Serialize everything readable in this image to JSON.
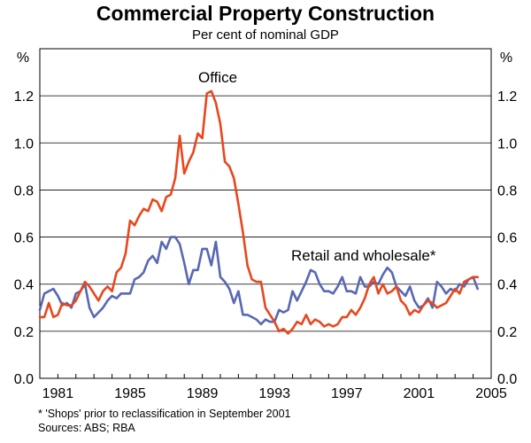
{
  "chart_data": {
    "type": "line",
    "title": "Commercial Property Construction",
    "subtitle": "Per cent of nominal GDP",
    "ylabel_left": "%",
    "ylabel_right": "%",
    "ylim": [
      0,
      1.4
    ],
    "xlim": [
      1980,
      2005
    ],
    "y_ticks": [
      0.0,
      0.2,
      0.4,
      0.6,
      0.8,
      1.0,
      1.2
    ],
    "y_tick_labels": [
      "0.0",
      "0.2",
      "0.4",
      "0.6",
      "0.8",
      "1.0",
      "1.2"
    ],
    "x_ticks": [
      1981,
      1985,
      1989,
      1993,
      1997,
      2001,
      2005
    ],
    "x_tick_labels": [
      "1981",
      "1985",
      "1989",
      "1993",
      "1997",
      "2001",
      "2005"
    ],
    "grid": "horizontal",
    "series": [
      {
        "name": "Office",
        "color": "#e8471e",
        "x": [
          1980.0,
          1980.25,
          1980.5,
          1980.75,
          1981.0,
          1981.25,
          1981.5,
          1981.75,
          1982.0,
          1982.25,
          1982.5,
          1982.75,
          1983.0,
          1983.25,
          1983.5,
          1983.75,
          1984.0,
          1984.25,
          1984.5,
          1984.75,
          1985.0,
          1985.25,
          1985.5,
          1985.75,
          1986.0,
          1986.25,
          1986.5,
          1986.75,
          1987.0,
          1987.25,
          1987.5,
          1987.75,
          1988.0,
          1988.25,
          1988.5,
          1988.75,
          1989.0,
          1989.25,
          1989.5,
          1989.75,
          1990.0,
          1990.25,
          1990.5,
          1990.75,
          1991.0,
          1991.25,
          1991.5,
          1991.75,
          1992.0,
          1992.25,
          1992.5,
          1992.75,
          1993.0,
          1993.25,
          1993.5,
          1993.75,
          1994.0,
          1994.25,
          1994.5,
          1994.75,
          1995.0,
          1995.25,
          1995.5,
          1995.75,
          1996.0,
          1996.25,
          1996.5,
          1996.75,
          1997.0,
          1997.25,
          1997.5,
          1997.75,
          1998.0,
          1998.25,
          1998.5,
          1998.75,
          1999.0,
          1999.25,
          1999.5,
          1999.75,
          2000.0,
          2000.25,
          2000.5,
          2000.75,
          2001.0,
          2001.25,
          2001.5,
          2001.75,
          2002.0,
          2002.25,
          2002.5,
          2002.75,
          2003.0,
          2003.25,
          2003.5,
          2003.75,
          2004.0,
          2004.25
        ],
        "values": [
          0.26,
          0.26,
          0.32,
          0.26,
          0.27,
          0.32,
          0.31,
          0.31,
          0.33,
          0.37,
          0.41,
          0.39,
          0.36,
          0.33,
          0.37,
          0.39,
          0.37,
          0.45,
          0.47,
          0.53,
          0.67,
          0.65,
          0.69,
          0.72,
          0.71,
          0.76,
          0.75,
          0.71,
          0.77,
          0.78,
          0.85,
          1.03,
          0.87,
          0.92,
          0.96,
          1.04,
          1.02,
          1.21,
          1.22,
          1.17,
          1.08,
          0.92,
          0.9,
          0.85,
          0.74,
          0.62,
          0.48,
          0.42,
          0.41,
          0.41,
          0.3,
          0.27,
          0.24,
          0.2,
          0.21,
          0.19,
          0.21,
          0.24,
          0.23,
          0.27,
          0.23,
          0.25,
          0.24,
          0.22,
          0.23,
          0.22,
          0.23,
          0.26,
          0.26,
          0.29,
          0.27,
          0.3,
          0.34,
          0.4,
          0.43,
          0.36,
          0.4,
          0.36,
          0.37,
          0.39,
          0.33,
          0.31,
          0.27,
          0.29,
          0.28,
          0.31,
          0.33,
          0.32,
          0.3,
          0.31,
          0.32,
          0.35,
          0.38,
          0.36,
          0.41,
          0.42,
          0.43,
          0.43
        ]
      },
      {
        "name": "Retail and wholesale*",
        "color": "#5868b4",
        "x": [
          1980.0,
          1980.25,
          1980.5,
          1980.75,
          1981.0,
          1981.25,
          1981.5,
          1981.75,
          1982.0,
          1982.25,
          1982.5,
          1982.75,
          1983.0,
          1983.25,
          1983.5,
          1983.75,
          1984.0,
          1984.25,
          1984.5,
          1984.75,
          1985.0,
          1985.25,
          1985.5,
          1985.75,
          1986.0,
          1986.25,
          1986.5,
          1986.75,
          1987.0,
          1987.25,
          1987.5,
          1987.75,
          1988.0,
          1988.25,
          1988.5,
          1988.75,
          1989.0,
          1989.25,
          1989.5,
          1989.75,
          1990.0,
          1990.25,
          1990.5,
          1990.75,
          1991.0,
          1991.25,
          1991.5,
          1991.75,
          1992.0,
          1992.25,
          1992.5,
          1992.75,
          1993.0,
          1993.25,
          1993.5,
          1993.75,
          1994.0,
          1994.25,
          1994.5,
          1994.75,
          1995.0,
          1995.25,
          1995.5,
          1995.75,
          1996.0,
          1996.25,
          1996.5,
          1996.75,
          1997.0,
          1997.25,
          1997.5,
          1997.75,
          1998.0,
          1998.25,
          1998.5,
          1998.75,
          1999.0,
          1999.25,
          1999.5,
          1999.75,
          2000.0,
          2000.25,
          2000.5,
          2000.75,
          2001.0,
          2001.25,
          2001.5,
          2001.75,
          2002.0,
          2002.25,
          2002.5,
          2002.75,
          2003.0,
          2003.25,
          2003.5,
          2003.75,
          2004.0,
          2004.25
        ],
        "values": [
          0.29,
          0.36,
          0.37,
          0.38,
          0.35,
          0.31,
          0.32,
          0.3,
          0.36,
          0.37,
          0.4,
          0.3,
          0.26,
          0.28,
          0.3,
          0.33,
          0.35,
          0.34,
          0.36,
          0.36,
          0.36,
          0.42,
          0.43,
          0.45,
          0.5,
          0.52,
          0.49,
          0.58,
          0.55,
          0.6,
          0.6,
          0.57,
          0.49,
          0.4,
          0.46,
          0.46,
          0.55,
          0.55,
          0.48,
          0.58,
          0.43,
          0.41,
          0.38,
          0.32,
          0.37,
          0.27,
          0.27,
          0.26,
          0.25,
          0.23,
          0.25,
          0.24,
          0.24,
          0.29,
          0.28,
          0.29,
          0.37,
          0.33,
          0.37,
          0.41,
          0.46,
          0.45,
          0.4,
          0.37,
          0.37,
          0.36,
          0.39,
          0.43,
          0.37,
          0.37,
          0.36,
          0.43,
          0.39,
          0.39,
          0.41,
          0.4,
          0.44,
          0.47,
          0.45,
          0.39,
          0.37,
          0.35,
          0.39,
          0.33,
          0.3,
          0.31,
          0.34,
          0.3,
          0.41,
          0.39,
          0.36,
          0.38,
          0.37,
          0.4,
          0.39,
          0.42,
          0.43,
          0.38
        ]
      }
    ],
    "annotations": [
      {
        "text": "Office",
        "series": 0
      },
      {
        "text": "Retail and wholesale*",
        "series": 1
      }
    ]
  },
  "notes": {
    "footnote": "* 'Shops' prior to reclassification in September 2001",
    "sources": "Sources: ABS; RBA"
  }
}
